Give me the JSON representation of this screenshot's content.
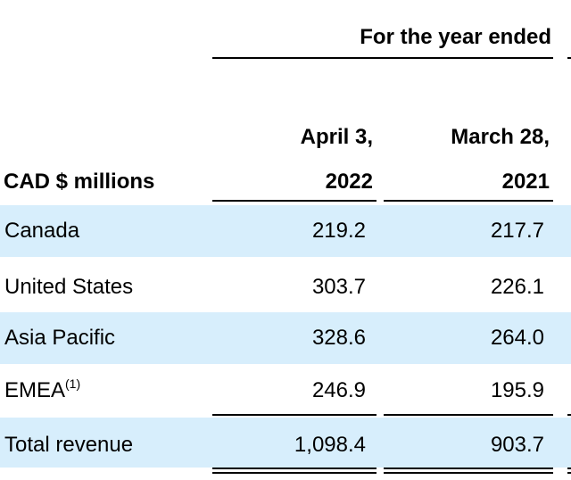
{
  "table": {
    "period_header": "For the year ended",
    "unit_label": "CAD $ millions",
    "columns": [
      {
        "line1": "April 3,",
        "line2": "2022"
      },
      {
        "line1": "March 28,",
        "line2": "2021"
      }
    ],
    "rows": [
      {
        "label": "Canada",
        "note": "",
        "values": [
          "219.2",
          "217.7"
        ],
        "shaded": true
      },
      {
        "label": "United States",
        "note": "",
        "values": [
          "303.7",
          "226.1"
        ],
        "shaded": false
      },
      {
        "label": "Asia Pacific",
        "note": "",
        "values": [
          "328.6",
          "264.0"
        ],
        "shaded": true
      },
      {
        "label": "EMEA",
        "note": "(1)",
        "values": [
          "246.9",
          "195.9"
        ],
        "shaded": false
      },
      {
        "label": "Total revenue",
        "note": "",
        "values": [
          "1,098.4",
          "903.7"
        ],
        "shaded": true
      }
    ],
    "band_color": "#d7eefc"
  }
}
